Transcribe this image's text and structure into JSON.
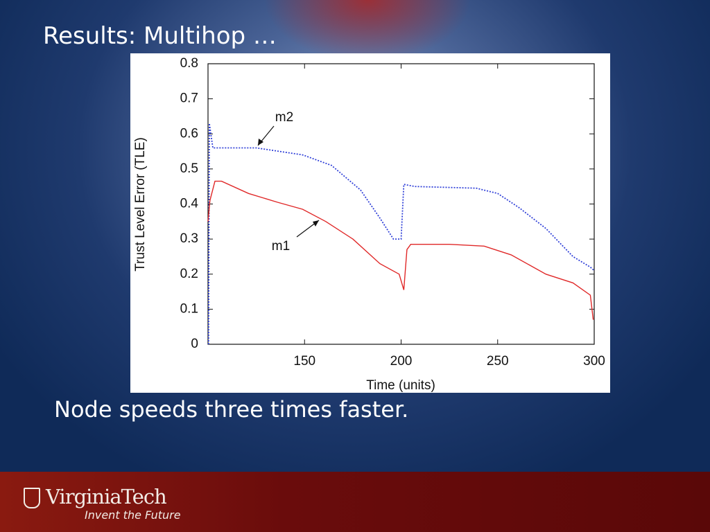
{
  "slide": {
    "title": "Results: Multihop …",
    "caption": "Node speeds three times faster.",
    "logo": "VirginiaTech",
    "tagline": "Invent the Future"
  },
  "chart_data": {
    "type": "line",
    "xlabel": "Time (units)",
    "ylabel": "Trust Level Error (TLE)",
    "xlim": [
      100,
      300
    ],
    "xticks": [
      150,
      200,
      250,
      300
    ],
    "ylim": [
      0,
      0.8
    ],
    "yticks": [
      0,
      0.1,
      0.2,
      0.3,
      0.4,
      0.5,
      0.6,
      0.7,
      0.8
    ],
    "grid": false,
    "series": [
      {
        "name": "m2",
        "color": "#3040d8",
        "dashed": true,
        "x": [
          100.3,
          100.7,
          102.5,
          125,
          149,
          164,
          179,
          189,
          196,
          200,
          201.4,
          207,
          239,
          250,
          261,
          275,
          289,
          298,
          300
        ],
        "values": [
          0,
          0.63,
          0.56,
          0.56,
          0.54,
          0.51,
          0.44,
          0.36,
          0.3,
          0.3,
          0.456,
          0.45,
          0.445,
          0.43,
          0.39,
          0.33,
          0.25,
          0.22,
          0.21
        ]
      },
      {
        "name": "m1",
        "color": "#e02828",
        "dashed": false,
        "x": [
          100,
          101,
          103.6,
          107,
          121,
          136,
          149,
          161,
          175,
          189,
          199,
          201.4,
          203,
          205,
          225,
          243,
          257,
          275,
          289,
          298,
          299.5
        ],
        "values": [
          0.35,
          0.41,
          0.465,
          0.465,
          0.43,
          0.405,
          0.385,
          0.35,
          0.3,
          0.23,
          0.2,
          0.155,
          0.27,
          0.285,
          0.285,
          0.28,
          0.255,
          0.2,
          0.175,
          0.14,
          0.07
        ]
      }
    ]
  }
}
